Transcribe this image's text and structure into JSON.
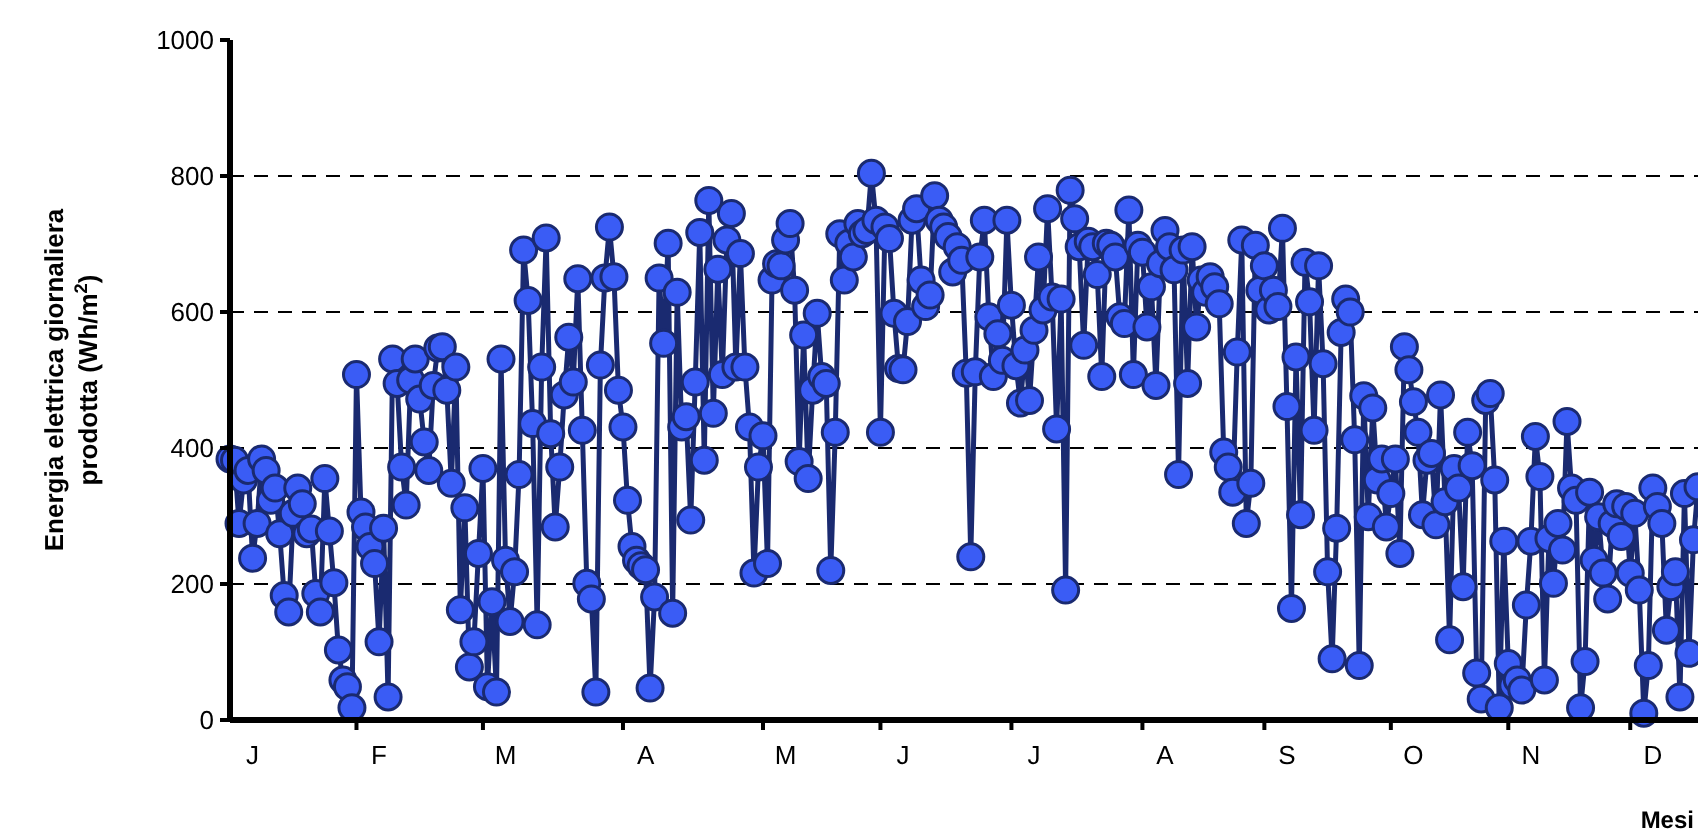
{
  "chart_data": {
    "type": "line",
    "xlabel": "Mesi",
    "ylabel": "Energia elettrica giornaliera prodotta (Wh/m$^{2}$)",
    "ylim": [
      0,
      1000
    ],
    "yticks": [
      0,
      200,
      400,
      600,
      800,
      1000
    ],
    "categories": [
      null,
      null,
      null,
      null,
      null,
      "J",
      null,
      null,
      null,
      null,
      null,
      null,
      null,
      null,
      null,
      null,
      null,
      null,
      null,
      null,
      null,
      null,
      null,
      null,
      null,
      null,
      null,
      null,
      null,
      null,
      null,
      null,
      null,
      "F",
      null,
      null,
      null,
      null,
      null,
      null,
      null,
      null,
      null,
      null,
      null,
      null,
      null,
      null,
      null,
      null,
      null,
      null,
      null,
      null,
      null,
      null,
      null,
      null,
      null,
      null,
      null,
      "M",
      null,
      null,
      null,
      null,
      null,
      null,
      null,
      null,
      null,
      null,
      null,
      null,
      null,
      null,
      null,
      null,
      null,
      null,
      null,
      null,
      null,
      null,
      null,
      null,
      null,
      null,
      null,
      null,
      null,
      null,
      "A",
      null,
      null,
      null,
      null,
      null,
      null,
      null,
      null,
      null,
      null,
      null,
      null,
      null,
      null,
      null,
      null,
      null,
      null,
      null,
      null,
      null,
      null,
      null,
      null,
      null,
      null,
      null,
      null,
      null,
      null,
      "M",
      null,
      null,
      null,
      null,
      null,
      null,
      null,
      null,
      null,
      null,
      null,
      null,
      null,
      null,
      null,
      null,
      null,
      null,
      null,
      null,
      null,
      null,
      null,
      null,
      null,
      "J",
      null,
      null,
      null,
      null,
      null,
      null,
      null,
      null,
      null,
      null,
      null,
      null,
      null,
      null,
      null,
      null,
      null,
      null,
      null,
      null,
      null,
      null,
      null,
      null,
      null,
      null,
      null,
      null,
      "J",
      null,
      null,
      null,
      null,
      null,
      null,
      null,
      null,
      null,
      null,
      null,
      null,
      null,
      null,
      null,
      null,
      null,
      null,
      null,
      null,
      null,
      null,
      null,
      null,
      null,
      null,
      null,
      null,
      "A",
      null,
      null,
      null,
      null,
      null,
      null,
      null,
      null,
      null,
      null,
      null,
      null,
      null,
      null,
      null,
      null,
      null,
      null,
      null,
      null,
      null,
      null,
      null,
      null,
      null,
      null,
      "S",
      null,
      null,
      null,
      null,
      null,
      null,
      null,
      null,
      null,
      null,
      null,
      null,
      null,
      null,
      null,
      null,
      null,
      null,
      null,
      null,
      null,
      null,
      null,
      null,
      null,
      null,
      null,
      "O",
      null,
      null,
      null,
      null,
      null,
      null,
      null,
      null,
      null,
      null,
      null,
      null,
      null,
      null,
      null,
      null,
      null,
      null,
      null,
      null,
      null,
      null,
      null,
      null,
      null,
      "N",
      null,
      null,
      null,
      null,
      null,
      null,
      null,
      null,
      null,
      null,
      null,
      null,
      null,
      null,
      null,
      null,
      null,
      null,
      null,
      null,
      null,
      null,
      null,
      null,
      null,
      null,
      "D",
      null,
      null,
      null,
      null,
      null,
      null,
      null,
      null,
      null,
      null
    ],
    "grid": "y",
    "marker": "circle",
    "line_style": "solid",
    "series": [
      {
        "color": "#3a5cf5",
        "values": [
          384,
          382,
          289,
          353,
          367,
          238,
          289,
          384,
          367,
          323,
          341,
          274,
          183,
          159,
          304,
          341,
          318,
          274,
          281,
          186,
          159,
          355,
          278,
          202,
          103,
          59,
          49,
          18,
          508,
          306,
          284,
          255,
          230,
          115,
          282,
          34,
          531,
          495,
          372,
          316,
          500,
          531,
          472,
          409,
          367,
          492,
          547,
          549,
          485,
          348,
          519,
          162,
          312,
          78,
          115,
          245,
          370,
          49,
          174,
          41,
          531,
          235,
          145,
          218,
          361,
          691,
          617,
          436,
          140,
          519,
          709,
          421,
          284,
          372,
          478,
          563,
          497,
          649,
          426,
          201,
          178,
          41,
          522,
          650,
          725,
          652,
          485,
          431,
          323,
          255,
          235,
          227,
          221,
          47,
          181,
          650,
          554,
          701,
          157,
          629,
          431,
          446,
          294,
          497,
          717,
          382,
          764,
          451,
          663,
          508,
          706,
          745,
          519,
          686,
          519,
          431,
          216,
          372,
          418,
          230,
          647,
          671,
          668,
          706,
          730,
          632,
          380,
          566,
          355,
          485,
          598,
          505,
          495,
          220,
          423,
          715,
          647,
          701,
          681,
          730,
          715,
          720,
          804,
          735,
          423,
          725,
          708,
          598,
          517,
          515,
          586,
          735,
          752,
          647,
          608,
          625,
          771,
          735,
          725,
          711,
          659,
          696,
          676,
          510,
          240,
          512,
          681,
          735,
          593,
          505,
          568,
          529,
          735,
          610,
          521,
          466,
          544,
          470,
          573,
          681,
          603,
          752,
          622,
          428,
          619,
          191,
          779,
          737,
          696,
          551,
          704,
          696,
          655,
          505,
          701,
          698,
          681,
          593,
          583,
          750,
          508,
          698,
          688,
          578,
          637,
          492,
          671,
          720,
          696,
          662,
          361,
          691,
          495,
          696,
          578,
          647,
          629,
          652,
          637,
          612,
          394,
          372,
          335,
          541,
          706,
          289,
          348,
          698,
          632,
          668,
          603,
          632,
          608,
          723,
          461,
          164,
          534,
          302,
          673,
          615,
          426,
          668,
          524,
          218,
          90,
          282,
          570,
          619,
          600,
          412,
          80,
          477,
          299,
          459,
          353,
          384,
          284,
          333,
          384,
          245,
          549,
          515,
          468,
          423,
          302,
          382,
          392,
          287,
          478,
          321,
          118,
          370,
          341,
          196,
          423,
          374,
          69,
          31,
          470,
          480,
          353,
          18,
          263,
          83,
          51,
          59,
          44,
          169,
          263,
          417,
          358,
          59,
          267,
          201,
          289,
          250,
          439,
          341,
          323,
          18,
          86,
          335,
          235,
          299,
          216,
          178,
          289,
          318,
          270,
          314,
          216,
          304,
          191,
          10,
          80,
          341,
          314,
          289,
          132,
          196,
          218,
          34,
          333,
          98,
          265,
          343
        ]
      }
    ]
  }
}
